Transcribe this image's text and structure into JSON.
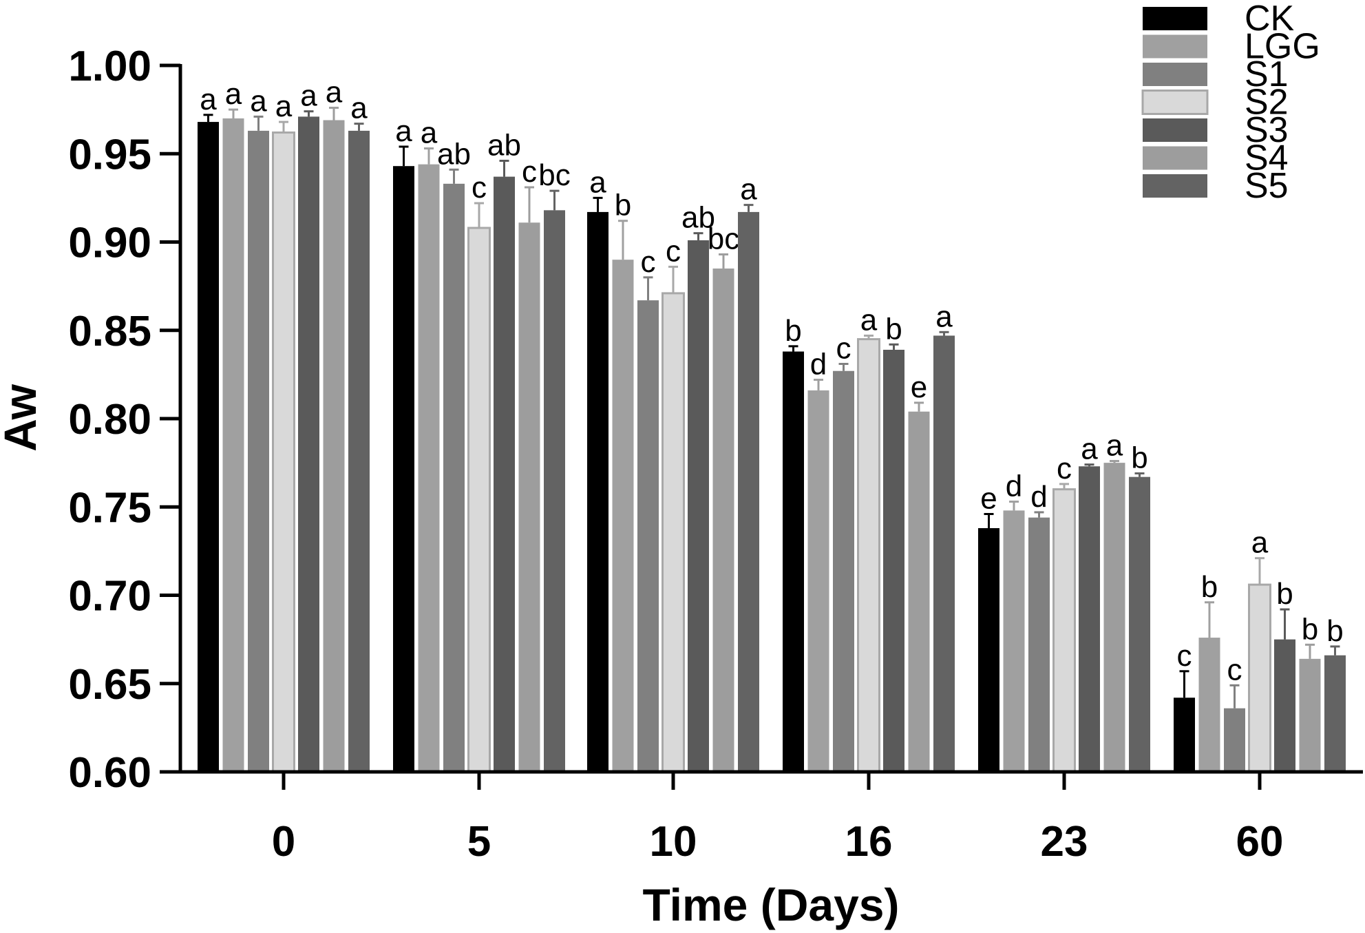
{
  "chart_data": {
    "type": "bar",
    "title": "",
    "xlabel": "Time (Days)",
    "ylabel": "Aw",
    "ylim": [
      0.6,
      1.0
    ],
    "yticks": [
      "0.60",
      "0.65",
      "0.70",
      "0.75",
      "0.80",
      "0.85",
      "0.90",
      "0.95",
      "1.00"
    ],
    "categories": [
      "0",
      "5",
      "10",
      "16",
      "23",
      "60"
    ],
    "legend_position": "top-right",
    "series": [
      {
        "name": "CK",
        "color": "#000000",
        "values": [
          0.968,
          0.943,
          0.917,
          0.838,
          0.738,
          0.642
        ],
        "errors": [
          0.004,
          0.011,
          0.008,
          0.003,
          0.008,
          0.015
        ],
        "letters": [
          "a",
          "a",
          "a",
          "b",
          "e",
          "c"
        ]
      },
      {
        "name": "LGG",
        "color": "#a0a0a0",
        "values": [
          0.97,
          0.944,
          0.89,
          0.816,
          0.748,
          0.676
        ],
        "errors": [
          0.005,
          0.009,
          0.022,
          0.006,
          0.005,
          0.02
        ],
        "letters": [
          "a",
          "a",
          "b",
          "d",
          "d",
          "b"
        ]
      },
      {
        "name": "S1",
        "color": "#808080",
        "values": [
          0.963,
          0.933,
          0.867,
          0.827,
          0.744,
          0.636
        ],
        "errors": [
          0.008,
          0.008,
          0.013,
          0.004,
          0.003,
          0.013
        ],
        "letters": [
          "a",
          "ab",
          "c",
          "c",
          "d",
          "c"
        ]
      },
      {
        "name": "S2",
        "color": "#d9d9d9",
        "values": [
          0.962,
          0.908,
          0.871,
          0.845,
          0.76,
          0.706
        ],
        "errors": [
          0.006,
          0.014,
          0.015,
          0.002,
          0.003,
          0.015
        ],
        "letters": [
          "a",
          "c",
          "c",
          "a",
          "c",
          "a"
        ]
      },
      {
        "name": "S3",
        "color": "#5a5a5a",
        "values": [
          0.971,
          0.937,
          0.901,
          0.839,
          0.773,
          0.675
        ],
        "errors": [
          0.003,
          0.009,
          0.004,
          0.003,
          0.001,
          0.017
        ],
        "letters": [
          "a",
          "ab",
          "ab",
          "b",
          "a",
          "b"
        ]
      },
      {
        "name": "S4",
        "color": "#9d9d9d",
        "values": [
          0.969,
          0.911,
          0.885,
          0.804,
          0.775,
          0.664
        ],
        "errors": [
          0.007,
          0.02,
          0.008,
          0.005,
          0.001,
          0.008
        ],
        "letters": [
          "a",
          "c",
          "bc",
          "e",
          "a",
          "b"
        ]
      },
      {
        "name": "S5",
        "color": "#636363",
        "values": [
          0.963,
          0.918,
          0.917,
          0.847,
          0.767,
          0.666
        ],
        "errors": [
          0.004,
          0.011,
          0.004,
          0.002,
          0.002,
          0.005
        ],
        "letters": [
          "a",
          "bc",
          "a",
          "a",
          "b",
          "b"
        ]
      }
    ]
  }
}
